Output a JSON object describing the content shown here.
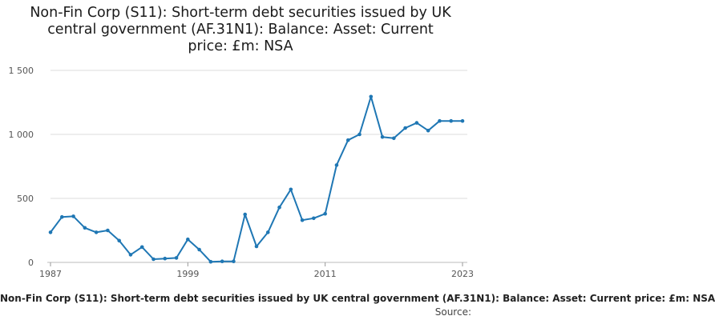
{
  "chart_data": {
    "type": "line",
    "title_lines": [
      "Non-Fin Corp (S11): Short-term debt securities issued by UK",
      "central government (AF.31N1): Balance: Asset: Current",
      "price: £m: NSA"
    ],
    "xlabel": "Non-Fin Corp (S11): Short-term debt securities issued by UK central government (AF.31N1): Balance: Asset: Current price: £m: NSA",
    "source_label": "Source:",
    "ylim": [
      0,
      1500
    ],
    "xlim": [
      1987,
      2023
    ],
    "y_ticks": [
      {
        "value": 0,
        "label": "0"
      },
      {
        "value": 500,
        "label": "500"
      },
      {
        "value": 1000,
        "label": "1 000"
      },
      {
        "value": 1500,
        "label": "1 500"
      }
    ],
    "x_ticks": [
      {
        "value": 1987,
        "label": "1987"
      },
      {
        "value": 1999,
        "label": "1999"
      },
      {
        "value": 2011,
        "label": "2011"
      },
      {
        "value": 2023,
        "label": "2023"
      }
    ],
    "grid": "horizontal",
    "series_color": "#1f77b4",
    "x": [
      1987,
      1988,
      1989,
      1990,
      1991,
      1992,
      1993,
      1994,
      1995,
      1996,
      1997,
      1998,
      1999,
      2000,
      2001,
      2002,
      2003,
      2004,
      2005,
      2006,
      2007,
      2008,
      2009,
      2010,
      2011,
      2012,
      2013,
      2014,
      2015,
      2016,
      2017,
      2018,
      2019,
      2020,
      2021,
      2022,
      2023
    ],
    "values": [
      235,
      355,
      360,
      270,
      235,
      250,
      170,
      60,
      120,
      25,
      30,
      35,
      180,
      100,
      5,
      8,
      8,
      375,
      125,
      235,
      430,
      570,
      330,
      345,
      380,
      760,
      955,
      1000,
      1295,
      980,
      970,
      1050,
      1090,
      1030,
      1105,
      1105,
      1105
    ]
  }
}
